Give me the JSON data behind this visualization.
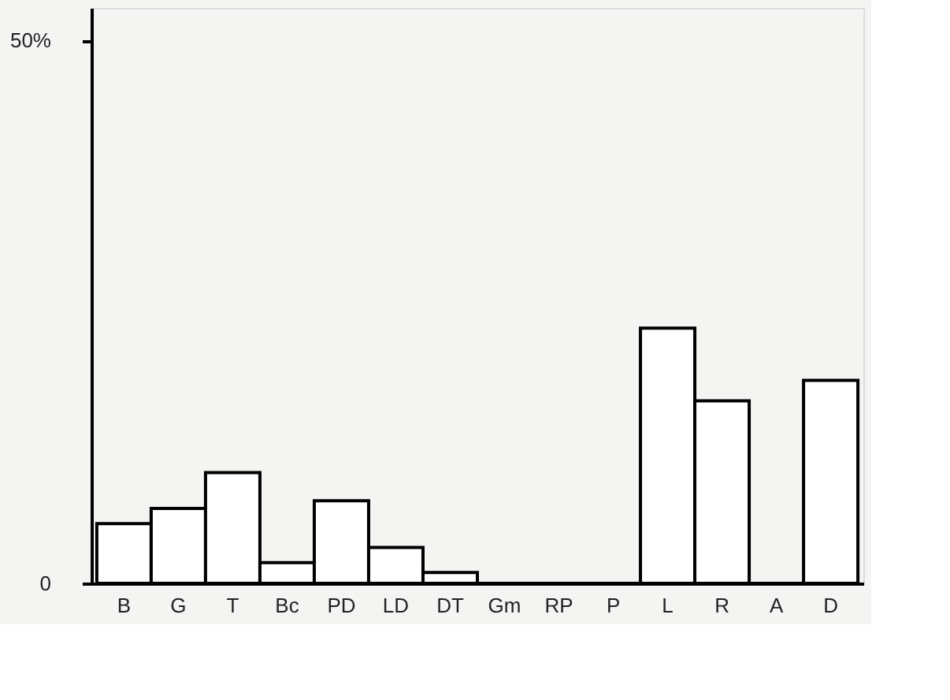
{
  "chart_data": {
    "type": "bar",
    "categories": [
      "B",
      "G",
      "T",
      "Bc",
      "PD",
      "LD",
      "DT",
      "Gm",
      "RP",
      "P",
      "L",
      "R",
      "A",
      "D"
    ],
    "values": [
      5.5,
      6.9,
      10.2,
      1.9,
      7.6,
      3.3,
      1.0,
      0,
      0,
      0,
      23.5,
      16.8,
      0,
      18.7
    ],
    "color": "#ffffff",
    "ylim": [
      0,
      53
    ],
    "yticks": [
      0,
      {
        "value": 50,
        "label": "50%"
      }
    ],
    "grid": false
  }
}
